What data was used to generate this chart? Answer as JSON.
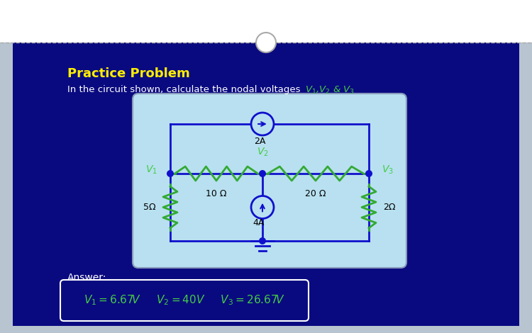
{
  "bg_outer": "#b8c4d0",
  "bg_inner": "#0a0a80",
  "circuit_bg": "#b8e0f0",
  "title": "Practice Problem",
  "subtitle_plain": "In the circuit shown, calculate the nodal voltages ",
  "subtitle_math": "$V_1$,$V_2$ & $V_3$",
  "title_color": "#ffee00",
  "subtitle_color": "#ffffff",
  "answer_label": "Answer:",
  "answer_label_color": "#ffffff",
  "answer_box_bg": "#0a0a80",
  "answer_box_edge": "#ffffff",
  "circuit_line_color": "#1010cc",
  "resistor_color": "#33aa33",
  "label_color": "#000000",
  "green_label_color": "#44cc44",
  "node_dot_color": "#1010cc",
  "current_source_bg": "#b8e0f0",
  "ground_color": "#1010cc"
}
